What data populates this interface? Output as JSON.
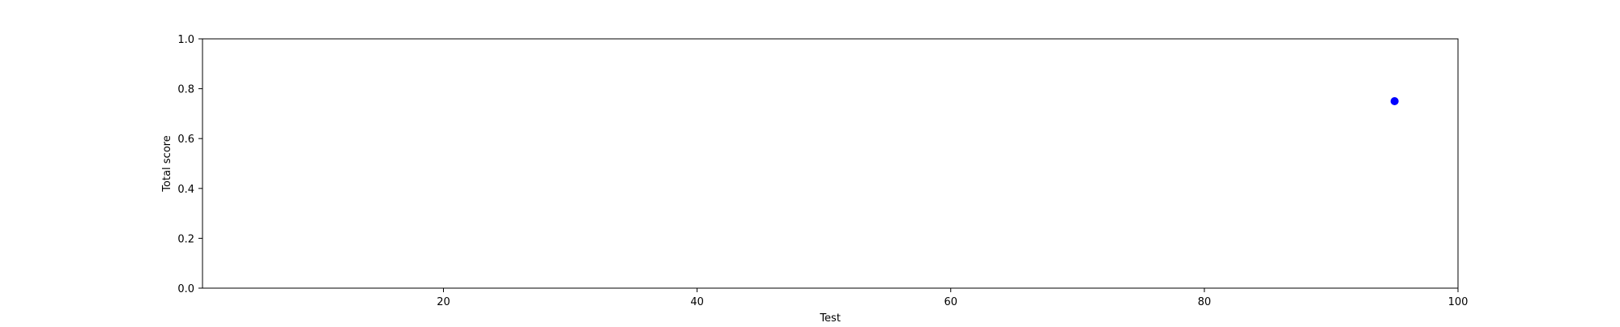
{
  "chart_data": {
    "type": "scatter",
    "title": "",
    "xlabel": "Test",
    "ylabel": "Total score",
    "xlim": [
      1,
      100
    ],
    "ylim": [
      0.0,
      1.0
    ],
    "x_ticks": [
      20,
      40,
      60,
      80,
      100
    ],
    "x_tick_labels": [
      "20",
      "40",
      "60",
      "80",
      "100"
    ],
    "y_ticks": [
      0.0,
      0.2,
      0.4,
      0.6,
      0.8,
      1.0
    ],
    "y_tick_labels": [
      "0.0",
      "0.2",
      "0.4",
      "0.6",
      "0.8",
      "1.0"
    ],
    "grid": false,
    "series": [
      {
        "color": "#0000ff",
        "points": [
          {
            "x": 95,
            "y": 0.75
          }
        ]
      }
    ]
  }
}
